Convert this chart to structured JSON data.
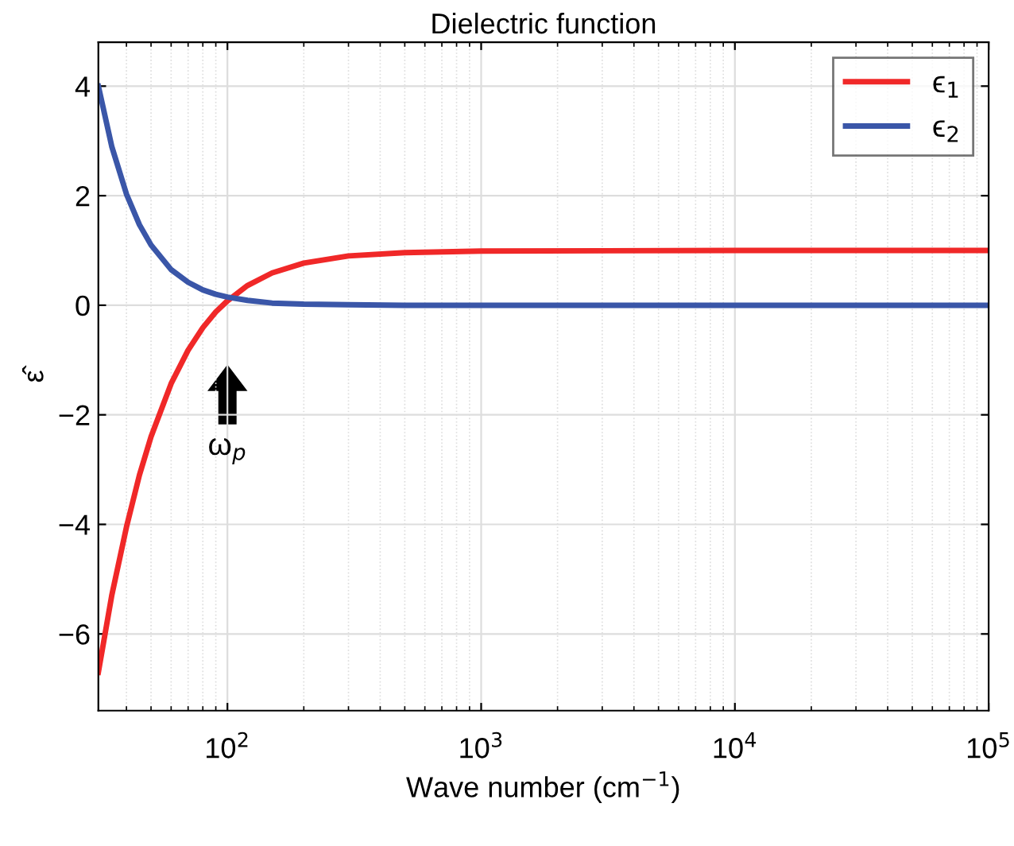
{
  "chart_data": {
    "type": "line",
    "title": "Dielectric function",
    "xlabel": "Wave number (cm$^{−1}$)",
    "ylabel": "ε̂",
    "x": [
      31,
      35,
      40,
      45,
      50,
      60,
      70,
      80,
      90,
      100,
      120,
      150,
      200,
      300,
      500,
      1000,
      10000,
      100000
    ],
    "series": [
      {
        "name": "ϵ$_{1}$",
        "color": "#f02828",
        "values": [
          -6.7,
          -5.3,
          -4.05,
          -3.1,
          -2.4,
          -1.43,
          -0.82,
          -0.41,
          -0.12,
          0.08,
          0.36,
          0.59,
          0.77,
          0.9,
          0.96,
          0.99,
          1.0,
          1.0
        ]
      },
      {
        "name": "ϵ$_{2}$",
        "color": "#3a56a8",
        "values": [
          4.0,
          2.9,
          2.03,
          1.47,
          1.1,
          0.65,
          0.42,
          0.28,
          0.2,
          0.15,
          0.09,
          0.04,
          0.02,
          0.01,
          0.0,
          0.0,
          0.0,
          0.0
        ]
      }
    ],
    "log": "x",
    "xlim": [
      31,
      100000
    ],
    "ylim": [
      -7.4,
      4.8
    ],
    "xticks": [
      {
        "value": 100,
        "label": "10$^{2}$"
      },
      {
        "value": 1000,
        "label": "10$^{3}$"
      },
      {
        "value": 10000,
        "label": "10$^{4}$"
      },
      {
        "value": 100000,
        "label": "10$^{5}$"
      }
    ],
    "yticks": [
      {
        "value": -6,
        "label": "−6"
      },
      {
        "value": -4,
        "label": "−4"
      },
      {
        "value": -2,
        "label": "−2"
      },
      0,
      2,
      4
    ],
    "annotations": [
      "ω$_{p}$"
    ],
    "grid": true,
    "legend": "top right",
    "marker": "none",
    "line_style": "solid"
  }
}
